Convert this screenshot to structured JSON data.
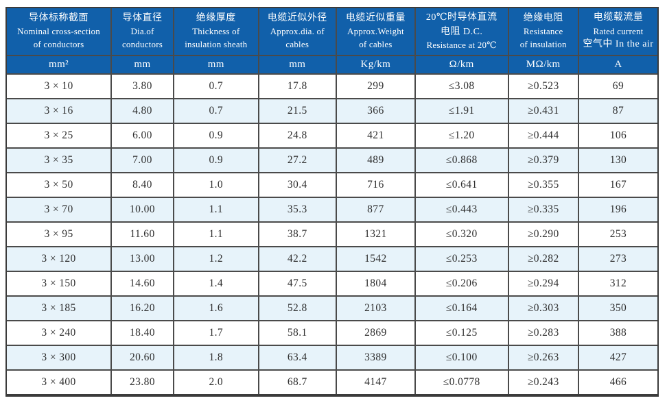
{
  "colors": {
    "header_bg": "#1160aa",
    "header_text": "#ffffff",
    "row_bg": "#ffffff",
    "row_alt_bg": "#e7f3fa",
    "grid_line": "#4a4a4a",
    "outer_border": "#3b3b3b",
    "body_text": "#2e2e2e"
  },
  "table": {
    "header": {
      "columns": [
        {
          "line1": "导体标称截面",
          "line2": "Nominal cross-section",
          "line3": "of conductors",
          "unit": "mm²"
        },
        {
          "line1": "导体直径",
          "line2": "Dia.of",
          "line3": "conductors",
          "unit": "mm"
        },
        {
          "line1": "绝缘厚度",
          "line2": "Thickness of",
          "line3": "insulation sheath",
          "unit": "mm"
        },
        {
          "line1": "电缆近似外径",
          "line2": "Approx.dia. of",
          "line3": "cables",
          "unit": "mm"
        },
        {
          "line1": "电缆近似重量",
          "line2": "Approx.Weight",
          "line3": "of cables",
          "unit": "Kg/km"
        },
        {
          "line1": "20℃时导体直流",
          "line2": "电阻 D.C.",
          "line3": "Resistance at 20℃",
          "unit": "Ω/km"
        },
        {
          "line1": "绝缘电阻",
          "line2": "Resistance",
          "line3": "of insulation",
          "unit": "MΩ/km"
        },
        {
          "line1": "电缆载流量",
          "line2": "Rated current",
          "line3": "空气中 In the air",
          "unit": "A"
        }
      ]
    },
    "rows": [
      [
        "3 × 10",
        "3.80",
        "0.7",
        "17.8",
        "299",
        "≤3.08",
        "≥0.523",
        "69"
      ],
      [
        "3 × 16",
        "4.80",
        "0.7",
        "21.5",
        "366",
        "≤1.91",
        "≥0.431",
        "87"
      ],
      [
        "3 × 25",
        "6.00",
        "0.9",
        "24.8",
        "421",
        "≤1.20",
        "≥0.444",
        "106"
      ],
      [
        "3 × 35",
        "7.00",
        "0.9",
        "27.2",
        "489",
        "≤0.868",
        "≥0.379",
        "130"
      ],
      [
        "3 × 50",
        "8.40",
        "1.0",
        "30.4",
        "716",
        "≤0.641",
        "≥0.355",
        "167"
      ],
      [
        "3 × 70",
        "10.00",
        "1.1",
        "35.3",
        "877",
        "≤0.443",
        "≥0.335",
        "196"
      ],
      [
        "3 × 95",
        "11.60",
        "1.1",
        "38.7",
        "1321",
        "≤0.320",
        "≥0.290",
        "253"
      ],
      [
        "3 × 120",
        "13.00",
        "1.2",
        "42.2",
        "1542",
        "≤0.253",
        "≥0.282",
        "273"
      ],
      [
        "3 × 150",
        "14.60",
        "1.4",
        "47.5",
        "1804",
        "≤0.206",
        "≥0.294",
        "312"
      ],
      [
        "3 × 185",
        "16.20",
        "1.6",
        "52.8",
        "2103",
        "≤0.164",
        "≥0.303",
        "350"
      ],
      [
        "3 × 240",
        "18.40",
        "1.7",
        "58.1",
        "2869",
        "≤0.125",
        "≥0.283",
        "388"
      ],
      [
        "3 × 300",
        "20.60",
        "1.8",
        "63.4",
        "3389",
        "≤0.100",
        "≥0.263",
        "427"
      ],
      [
        "3 × 400",
        "23.80",
        "2.0",
        "68.7",
        "4147",
        "≤0.0778",
        "≥0.243",
        "466"
      ]
    ]
  }
}
